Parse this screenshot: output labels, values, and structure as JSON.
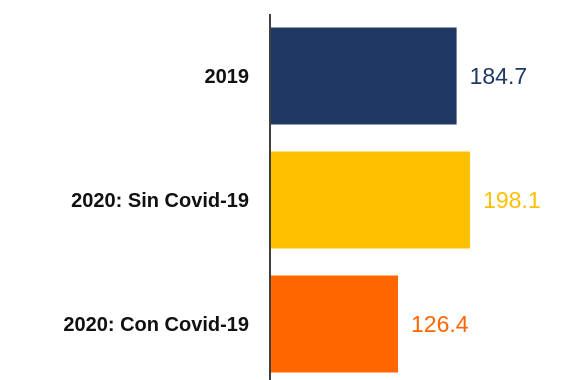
{
  "chart_data": {
    "type": "bar",
    "orientation": "horizontal",
    "categories": [
      "2019",
      "2020: Sin Covid-19",
      "2020: Con Covid-19"
    ],
    "values": [
      184.7,
      198.1,
      126.4
    ],
    "value_labels": [
      "184.7",
      "198.1",
      "126.4"
    ],
    "colors": [
      "#203864",
      "#FFC000",
      "#FF6600"
    ],
    "xlim": [
      0,
      205
    ],
    "grid": false,
    "legend": "none",
    "axis_color": "#404040"
  }
}
